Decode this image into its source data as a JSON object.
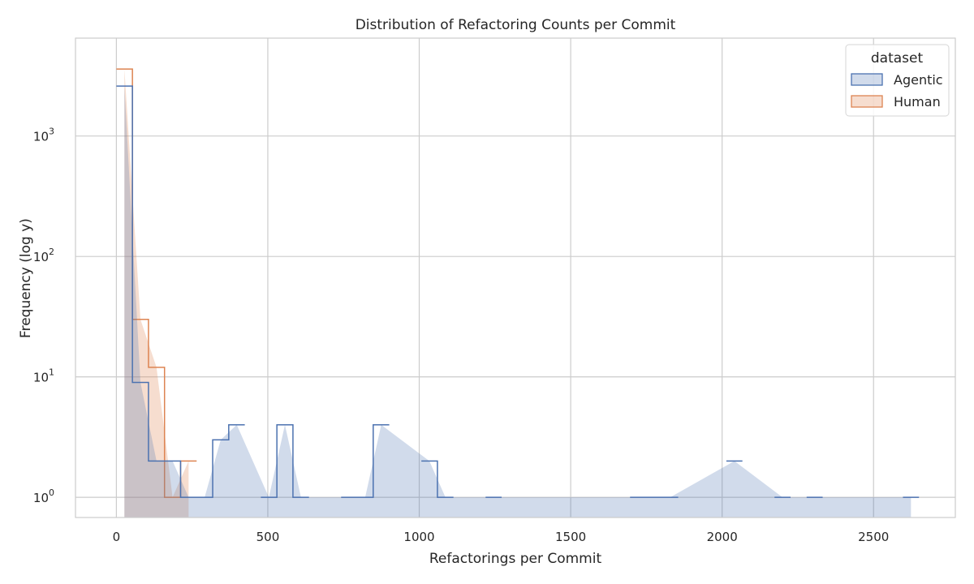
{
  "chart_data": {
    "type": "histogram",
    "title": "Distribution of Refactoring Counts per Commit",
    "xlabel": "Refactorings per Commit",
    "ylabel": "Frequency (log y)",
    "yscale": "log",
    "xlim": [
      -135,
      2770
    ],
    "ylim": [
      0.68,
      6500
    ],
    "xticks": [
      0,
      500,
      1000,
      1500,
      2000,
      2500
    ],
    "xtick_labels": [
      "0",
      "500",
      "1000",
      "1500",
      "2000",
      "2500"
    ],
    "yticks": [
      1,
      10,
      100,
      1000
    ],
    "ytick_labels": [
      {
        "base": "10",
        "exp": "0"
      },
      {
        "base": "10",
        "exp": "1"
      },
      {
        "base": "10",
        "exp": "2"
      },
      {
        "base": "10",
        "exp": "3"
      }
    ],
    "grid": true,
    "legend": {
      "title": "dataset",
      "placement": "top-right"
    },
    "series": [
      {
        "name": "Agentic",
        "color": "#4c72b0",
        "fill": "rgba(76,114,176,0.26)",
        "bins": [
          [
            0,
            53,
            2600
          ],
          [
            53,
            106,
            9
          ],
          [
            106,
            159,
            2
          ],
          [
            159,
            212,
            2
          ],
          [
            212,
            265,
            1
          ],
          [
            265,
            318,
            1
          ],
          [
            318,
            371,
            3
          ],
          [
            371,
            424,
            4
          ],
          [
            477,
            530,
            1
          ],
          [
            530,
            583,
            4
          ],
          [
            583,
            636,
            1
          ],
          [
            742,
            795,
            1
          ],
          [
            795,
            848,
            1
          ],
          [
            848,
            901,
            4
          ],
          [
            1007,
            1060,
            2
          ],
          [
            1060,
            1113,
            1
          ],
          [
            1219,
            1272,
            1
          ],
          [
            1696,
            1749,
            1
          ],
          [
            1749,
            1802,
            1
          ],
          [
            1802,
            1855,
            1
          ],
          [
            2014,
            2067,
            2
          ],
          [
            2173,
            2226,
            1
          ],
          [
            2279,
            2332,
            1
          ],
          [
            2597,
            2650,
            1
          ]
        ]
      },
      {
        "name": "Human",
        "color": "#dd8452",
        "fill": "rgba(221,132,82,0.28)",
        "bins": [
          [
            0,
            53,
            3600
          ],
          [
            53,
            106,
            30
          ],
          [
            106,
            159,
            12
          ],
          [
            159,
            212,
            1
          ],
          [
            212,
            265,
            2
          ]
        ]
      }
    ]
  }
}
